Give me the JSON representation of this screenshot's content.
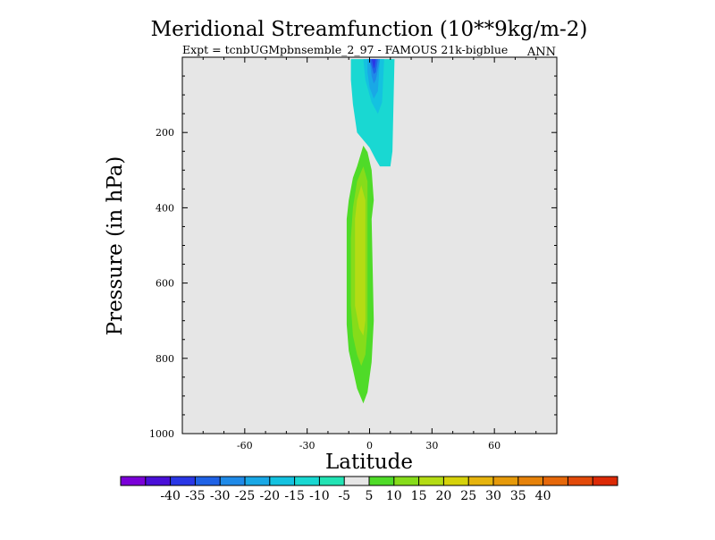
{
  "chart_data": {
    "type": "contour",
    "title": "Meridional Streamfunction (10**9kg/m-2)",
    "subtitle": "Expt = tcnbUGMpbnsemble_2_97 - FAMOUS 21k-bigblue",
    "season_label": "ANN",
    "xlabel": "Latitude",
    "ylabel": "Pressure (in hPa)",
    "xlim": [
      -90,
      90
    ],
    "ylim": [
      0,
      1000
    ],
    "y_inverted": true,
    "x_ticks": [
      -60,
      -30,
      0,
      30,
      60
    ],
    "x_tick_labels": [
      "-60",
      "-30",
      "0",
      "30",
      "60"
    ],
    "y_ticks": [
      200,
      400,
      600,
      800,
      1000
    ],
    "y_tick_labels": [
      "200",
      "400",
      "600",
      "800",
      "1000"
    ],
    "background_color": "#e6e6e6",
    "levels": [
      -45,
      -40,
      -35,
      -30,
      -25,
      -20,
      -15,
      -10,
      -5,
      5,
      10,
      15,
      20,
      25,
      30,
      35,
      40,
      45
    ],
    "colorbar": {
      "colors": [
        "#7b00d8",
        "#4a0fd8",
        "#2a37e6",
        "#1f62e6",
        "#1f8ae8",
        "#19a8e6",
        "#14c2e0",
        "#19d8d2",
        "#22e3b4",
        "#e6e6e6",
        "#4fdb28",
        "#86dc1a",
        "#b4dc14",
        "#d6d20a",
        "#e6b40e",
        "#e69a0a",
        "#e6820a",
        "#e6680a",
        "#e24a0a",
        "#dc2a06"
      ],
      "labels": [
        "-40",
        "-35",
        "-30",
        "-25",
        "-20",
        "-15",
        "-10",
        "-5",
        "5",
        "10",
        "15",
        "20",
        "25",
        "30",
        "35",
        "40"
      ]
    },
    "cells": [
      {
        "name": "upper-negative-cell",
        "sign": "negative",
        "min_value": -35,
        "lat_range": [
          -10,
          12
        ],
        "p_range": [
          5,
          300
        ],
        "levels": [
          {
            "value": -10,
            "color": "#19d8d2",
            "outline": [
              [
                -9,
                5
              ],
              [
                12,
                5
              ],
              [
                11,
                250
              ],
              [
                10,
                290
              ],
              [
                5,
                290
              ],
              [
                3,
                272
              ],
              [
                0,
                240
              ],
              [
                -6,
                200
              ],
              [
                -8,
                125
              ],
              [
                -9,
                60
              ]
            ]
          },
          {
            "value": -15,
            "color": "#14c2e0",
            "outline": [
              [
                -3,
                5
              ],
              [
                7,
                5
              ],
              [
                6,
                120
              ],
              [
                4,
                150
              ],
              [
                1,
                120
              ],
              [
                -2,
                60
              ]
            ]
          },
          {
            "value": -20,
            "color": "#19a8e6",
            "outline": [
              [
                -1,
                5
              ],
              [
                5,
                5
              ],
              [
                4,
                90
              ],
              [
                2,
                110
              ],
              [
                0,
                80
              ],
              [
                -1,
                40
              ]
            ]
          },
          {
            "value": -25,
            "color": "#1f8ae8",
            "outline": [
              [
                0,
                5
              ],
              [
                5,
                5
              ],
              [
                3,
                60
              ],
              [
                2,
                70
              ],
              [
                1,
                50
              ]
            ]
          },
          {
            "value": -30,
            "color": "#1f62e6",
            "outline": [
              [
                0,
                5
              ],
              [
                4,
                5
              ],
              [
                3,
                40
              ],
              [
                2,
                45
              ]
            ]
          },
          {
            "value": -35,
            "color": "#2a37e6",
            "outline": [
              [
                1,
                5
              ],
              [
                3,
                5
              ],
              [
                2.5,
                25
              ],
              [
                2,
                30
              ]
            ]
          }
        ]
      },
      {
        "name": "lower-positive-cell",
        "sign": "positive",
        "max_value": 15,
        "lat_range": [
          -11,
          3
        ],
        "p_range": [
          235,
          920
        ],
        "levels": [
          {
            "value": 5,
            "color": "#4fdb28",
            "outline": [
              [
                -3,
                235
              ],
              [
                -1,
                252
              ],
              [
                1,
                300
              ],
              [
                2,
                380
              ],
              [
                1,
                430
              ],
              [
                2,
                700
              ],
              [
                1,
                810
              ],
              [
                -1,
                890
              ],
              [
                -3,
                920
              ],
              [
                -6,
                880
              ],
              [
                -8,
                830
              ],
              [
                -10,
                780
              ],
              [
                -11,
                710
              ],
              [
                -11,
                560
              ],
              [
                -11,
                430
              ],
              [
                -10,
                380
              ],
              [
                -8,
                320
              ],
              [
                -6,
                290
              ]
            ]
          },
          {
            "value": 10,
            "color": "#86dc1a",
            "outline": [
              [
                -3,
                290
              ],
              [
                -1,
                330
              ],
              [
                -1,
                400
              ],
              [
                -1,
                600
              ],
              [
                -1,
                720
              ],
              [
                -2,
                790
              ],
              [
                -4,
                820
              ],
              [
                -6,
                790
              ],
              [
                -8,
                740
              ],
              [
                -9,
                660
              ],
              [
                -9,
                480
              ],
              [
                -8,
                400
              ],
              [
                -6,
                330
              ]
            ]
          },
          {
            "value": 15,
            "color": "#b4dc14",
            "outline": [
              [
                -4,
                340
              ],
              [
                -2,
                380
              ],
              [
                -2,
                430
              ],
              [
                -2,
                700
              ],
              [
                -3,
                740
              ],
              [
                -5,
                720
              ],
              [
                -7,
                660
              ],
              [
                -7,
                430
              ],
              [
                -6,
                380
              ]
            ]
          }
        ]
      }
    ]
  }
}
